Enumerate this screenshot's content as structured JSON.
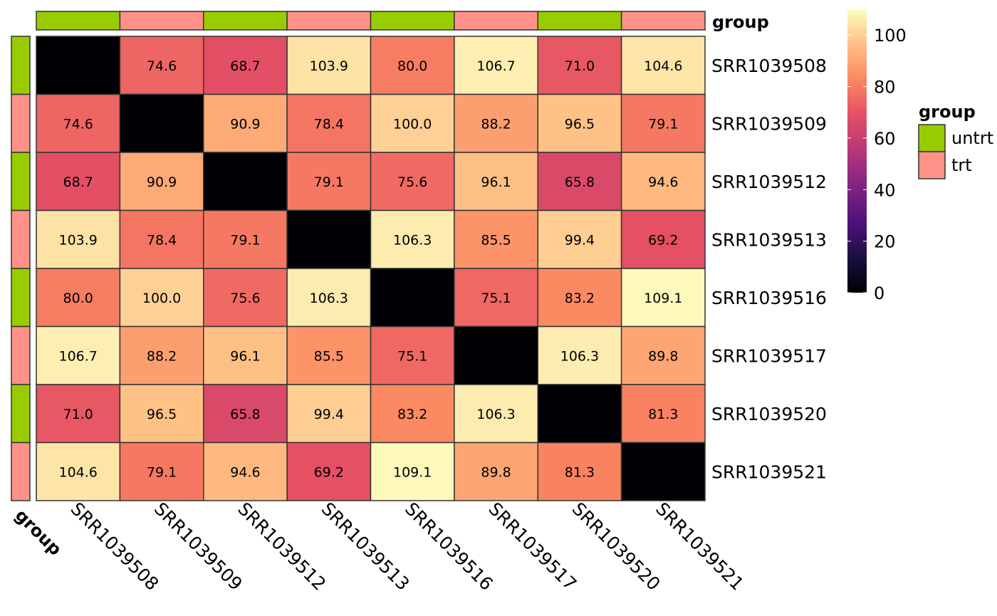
{
  "chart_data": {
    "type": "heatmap",
    "samples": [
      "SRR1039508",
      "SRR1039509",
      "SRR1039512",
      "SRR1039513",
      "SRR1039516",
      "SRR1039517",
      "SRR1039520",
      "SRR1039521"
    ],
    "groups": [
      "untrt",
      "trt",
      "untrt",
      "trt",
      "untrt",
      "trt",
      "untrt",
      "trt"
    ],
    "matrix": [
      [
        0,
        74.6,
        68.7,
        103.9,
        80.0,
        106.7,
        71.0,
        104.6
      ],
      [
        74.6,
        0,
        90.9,
        78.4,
        100.0,
        88.2,
        96.5,
        79.1
      ],
      [
        68.7,
        90.9,
        0,
        79.1,
        75.6,
        96.1,
        65.8,
        94.6
      ],
      [
        103.9,
        78.4,
        79.1,
        0,
        106.3,
        85.5,
        99.4,
        69.2
      ],
      [
        80.0,
        100.0,
        75.6,
        106.3,
        0,
        75.1,
        83.2,
        109.1
      ],
      [
        106.7,
        88.2,
        96.1,
        85.5,
        75.1,
        0,
        106.3,
        89.8
      ],
      [
        71.0,
        96.5,
        65.8,
        99.4,
        83.2,
        106.3,
        0,
        81.3
      ],
      [
        104.6,
        79.1,
        94.6,
        69.2,
        109.1,
        89.8,
        81.3,
        0
      ]
    ],
    "color_range": [
      0,
      110
    ],
    "colorbar_ticks": [
      0,
      20,
      40,
      60,
      80,
      100
    ],
    "annotation_title": "group",
    "annotation_legend": {
      "title": "group",
      "entries": [
        {
          "label": "untrt",
          "color": "#99CC00"
        },
        {
          "label": "trt",
          "color": "#FF9188"
        }
      ]
    },
    "diagonal_labels_shown": false,
    "colormap": "magma"
  }
}
